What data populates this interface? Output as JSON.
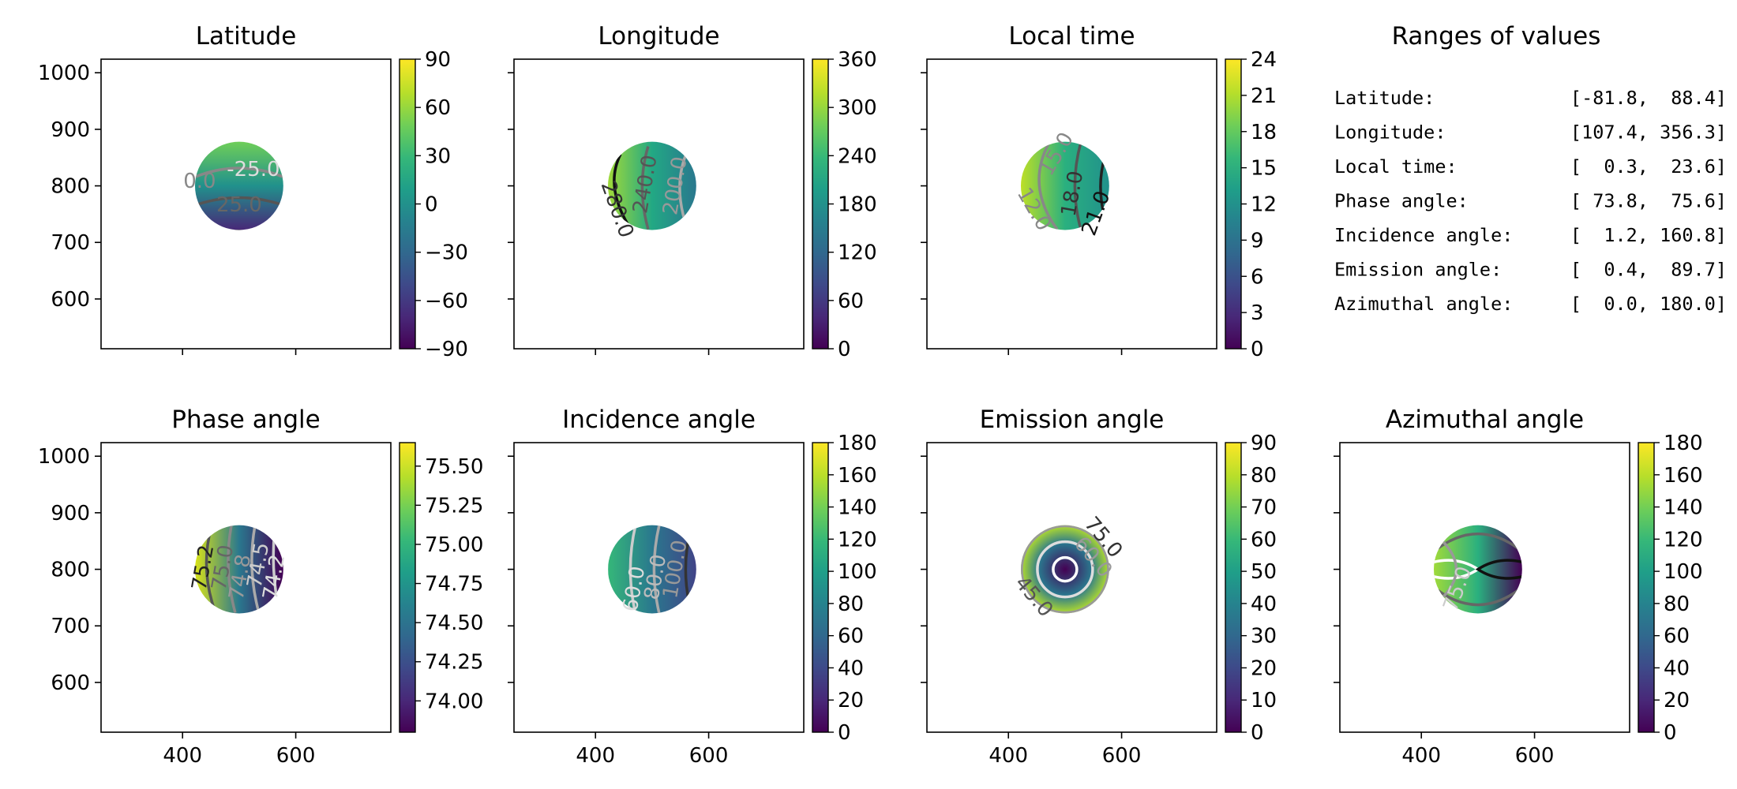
{
  "chart_data": [
    {
      "type": "heatmap",
      "title": "Latitude",
      "x_ticks": [],
      "y_ticks": [
        1000,
        900,
        800,
        700,
        600
      ],
      "x_range": [
        256,
        768
      ],
      "y_range": [
        512,
        1024
      ],
      "disk": {
        "center": [
          500,
          800
        ],
        "radius": 78
      },
      "colorbar": {
        "range": [
          -90,
          90
        ],
        "ticks": [
          "90",
          "60",
          "30",
          "0",
          "−30",
          "−60",
          "−90"
        ]
      },
      "contour_labels": [
        "0.0",
        "-25.0",
        "25.0"
      ],
      "colors": {
        "low": "#482878",
        "high": "#6ece58",
        "mid": "#21918c"
      }
    },
    {
      "type": "heatmap",
      "title": "Longitude",
      "x_ticks": [],
      "y_ticks": [],
      "x_range": [
        256,
        768
      ],
      "y_range": [
        512,
        1024
      ],
      "disk": {
        "center": [
          500,
          800
        ],
        "radius": 78
      },
      "colorbar": {
        "range": [
          0,
          360
        ],
        "ticks": [
          "360",
          "300",
          "240",
          "180",
          "120",
          "60",
          "0"
        ]
      },
      "contour_labels": [
        "280.0",
        "240.0",
        "200.0"
      ],
      "colors": {
        "low": "#2a788e",
        "high": "#a0da39",
        "mid": "#22a884"
      }
    },
    {
      "type": "heatmap",
      "title": "Local time",
      "x_ticks": [],
      "y_ticks": [],
      "x_range": [
        256,
        768
      ],
      "y_range": [
        512,
        1024
      ],
      "disk": {
        "center": [
          500,
          800
        ],
        "radius": 78
      },
      "colorbar": {
        "range": [
          0,
          24
        ],
        "ticks": [
          "24",
          "21",
          "18",
          "15",
          "12",
          "9",
          "6",
          "3",
          "0"
        ]
      },
      "contour_labels": [
        "15.0",
        "12.0",
        "18.0",
        "21.0"
      ],
      "colors": {
        "low": "#21918c",
        "high": "#bddf26",
        "mid": "#2ab07f"
      }
    },
    {
      "type": "heatmap",
      "title": "Phase angle",
      "x_ticks": [],
      "y_ticks": [
        1000,
        900,
        800,
        700,
        600
      ],
      "x_range": [
        256,
        768
      ],
      "y_range": [
        512,
        1024
      ],
      "disk": {
        "center": [
          500,
          800
        ],
        "radius": 78
      },
      "colorbar": {
        "range": [
          73.8,
          75.65
        ],
        "ticks": [
          "75.50",
          "75.25",
          "75.00",
          "74.75",
          "74.50",
          "74.25",
          "74.00"
        ]
      },
      "contour_labels": [
        "75.2",
        "75.0",
        "74.8",
        "74.5",
        "74.2"
      ],
      "colors": {
        "low": "#440154",
        "high": "#d8e219",
        "mid": "#2a788e"
      }
    },
    {
      "type": "heatmap",
      "title": "Incidence angle",
      "x_ticks": [],
      "y_ticks": [],
      "x_range": [
        256,
        768
      ],
      "y_range": [
        512,
        1024
      ],
      "disk": {
        "center": [
          500,
          800
        ],
        "radius": 78
      },
      "colorbar": {
        "range": [
          0,
          180
        ],
        "ticks": [
          "180",
          "160",
          "140",
          "120",
          "100",
          "80",
          "60",
          "40",
          "20",
          "0"
        ]
      },
      "contour_labels": [
        "60.0",
        "80.0",
        "100.0"
      ],
      "colors": {
        "low": "#414487",
        "high": "#35b779",
        "mid": "#2a788e"
      }
    },
    {
      "type": "heatmap",
      "title": "Emission angle",
      "x_ticks": [
        400,
        600
      ],
      "y_ticks": [],
      "x_range": [
        256,
        768
      ],
      "y_range": [
        512,
        1024
      ],
      "disk": {
        "center": [
          500,
          800
        ],
        "radius": 78
      },
      "colorbar": {
        "range": [
          0,
          90
        ],
        "ticks": [
          "90",
          "80",
          "70",
          "60",
          "50",
          "40",
          "30",
          "20",
          "10",
          "0"
        ]
      },
      "contour_labels": [
        "75.0",
        "60.0",
        "45.0"
      ],
      "colors": {
        "low": "#440154",
        "high": "#b5de2b",
        "mid": "#2a788e"
      }
    },
    {
      "type": "heatmap",
      "title": "Azimuthal angle",
      "x_ticks": [
        400,
        600
      ],
      "y_ticks": [],
      "x_range": [
        256,
        768
      ],
      "y_range": [
        512,
        1024
      ],
      "disk": {
        "center": [
          500,
          800
        ],
        "radius": 78
      },
      "colorbar": {
        "range": [
          0,
          180
        ],
        "ticks": [
          "180",
          "160",
          "140",
          "120",
          "100",
          "80",
          "60",
          "40",
          "20",
          "0"
        ]
      },
      "contour_labels": [
        "75.0"
      ],
      "colors": {
        "low": "#440154",
        "high": "#9fda3a",
        "mid": "#2ab07f"
      }
    }
  ],
  "ranges_panel": {
    "title": "Ranges of values",
    "rows": [
      {
        "label": "Latitude:",
        "value": "[-81.8,  88.4]"
      },
      {
        "label": "Longitude:",
        "value": "[107.4, 356.3]"
      },
      {
        "label": "Local time:",
        "value": "[  0.3,  23.6]"
      },
      {
        "label": "Phase angle:",
        "value": "[ 73.8,  75.6]"
      },
      {
        "label": "Incidence angle:",
        "value": "[  1.2, 160.8]"
      },
      {
        "label": "Emission angle:",
        "value": "[  0.4,  89.7]"
      },
      {
        "label": "Azimuthal angle:",
        "value": "[  0.0, 180.0]"
      }
    ]
  },
  "shared_x_ticks": [
    400,
    600
  ]
}
